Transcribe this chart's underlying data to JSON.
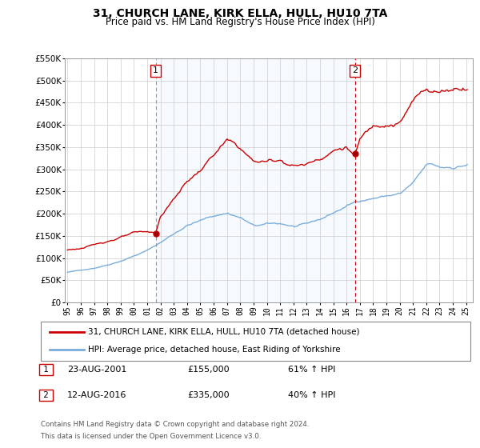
{
  "title": "31, CHURCH LANE, KIRK ELLA, HULL, HU10 7TA",
  "subtitle": "Price paid vs. HM Land Registry's House Price Index (HPI)",
  "legend_line1": "31, CHURCH LANE, KIRK ELLA, HULL, HU10 7TA (detached house)",
  "legend_line2": "HPI: Average price, detached house, East Riding of Yorkshire",
  "footnote1": "Contains HM Land Registry data © Crown copyright and database right 2024.",
  "footnote2": "This data is licensed under the Open Government Licence v3.0.",
  "annotation1_label": "1",
  "annotation1_date": "23-AUG-2001",
  "annotation1_price": "£155,000",
  "annotation1_hpi": "61% ↑ HPI",
  "annotation2_label": "2",
  "annotation2_date": "12-AUG-2016",
  "annotation2_price": "£335,000",
  "annotation2_hpi": "40% ↑ HPI",
  "sale_color": "#cc0000",
  "hpi_color": "#7aaddb",
  "vline1_color": "#999999",
  "vline2_color": "#cc0000",
  "shade_color": "#ddeeff",
  "ylim": [
    0,
    550000
  ],
  "yticks": [
    0,
    50000,
    100000,
    150000,
    200000,
    250000,
    300000,
    350000,
    400000,
    450000,
    500000,
    550000
  ],
  "sale1_x": 2001.64,
  "sale1_y": 155000,
  "sale2_x": 2016.64,
  "sale2_y": 335000,
  "vline1_x": 2001.64,
  "vline2_x": 2016.64,
  "xlim": [
    1994.8,
    2025.5
  ],
  "xticks": [
    1995,
    1996,
    1997,
    1998,
    1999,
    2000,
    2001,
    2002,
    2003,
    2004,
    2005,
    2006,
    2007,
    2008,
    2009,
    2010,
    2011,
    2012,
    2013,
    2014,
    2015,
    2016,
    2017,
    2018,
    2019,
    2020,
    2021,
    2022,
    2023,
    2024,
    2025
  ]
}
